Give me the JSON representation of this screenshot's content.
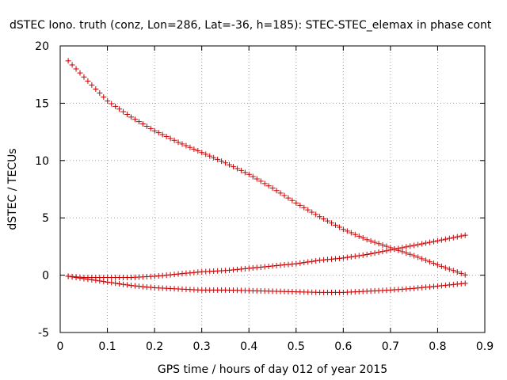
{
  "chart_data": {
    "type": "scatter",
    "title": "dSTEC Iono. truth (conz, Lon=286, Lat=-36, h=185): STEC-STEC_elemax in phase cont",
    "xlabel": "GPS time / hours of day 012 of year 2015",
    "ylabel": "dSTEC  / TECUs",
    "xlim": [
      0,
      0.9
    ],
    "ylim": [
      -5,
      20
    ],
    "x_ticks": [
      "0",
      "0.1",
      "0.2",
      "0.3",
      "0.4",
      "0.5",
      "0.6",
      "0.7",
      "0.8",
      "0.9"
    ],
    "y_ticks": [
      "-5",
      "0",
      "5",
      "10",
      "15",
      "20"
    ],
    "grid": true,
    "marker": "plus",
    "color": "#cc0000",
    "series": [
      {
        "x_start": 0.017,
        "x_end": 0.86,
        "step": 0.00833,
        "x_knots": [
          0.017,
          0.05,
          0.1,
          0.15,
          0.2,
          0.25,
          0.3,
          0.35,
          0.4,
          0.45,
          0.5,
          0.55,
          0.6,
          0.65,
          0.7,
          0.75,
          0.8,
          0.86
        ],
        "y_knots": [
          18.7,
          17.3,
          15.2,
          13.8,
          12.6,
          11.6,
          10.7,
          9.8,
          8.8,
          7.6,
          6.3,
          5.1,
          4.0,
          3.1,
          2.4,
          1.7,
          0.9,
          0.0
        ]
      },
      {
        "x_start": 0.017,
        "x_end": 0.86,
        "step": 0.00833,
        "x_knots": [
          0.017,
          0.05,
          0.1,
          0.15,
          0.2,
          0.25,
          0.3,
          0.35,
          0.4,
          0.45,
          0.5,
          0.55,
          0.6,
          0.65,
          0.7,
          0.75,
          0.8,
          0.86
        ],
        "y_knots": [
          -0.1,
          -0.2,
          -0.2,
          -0.2,
          -0.1,
          0.1,
          0.3,
          0.4,
          0.6,
          0.8,
          1.0,
          1.3,
          1.5,
          1.8,
          2.2,
          2.6,
          3.0,
          3.5
        ]
      },
      {
        "x_start": 0.017,
        "x_end": 0.86,
        "step": 0.00833,
        "x_knots": [
          0.017,
          0.05,
          0.1,
          0.15,
          0.2,
          0.25,
          0.3,
          0.35,
          0.4,
          0.45,
          0.5,
          0.55,
          0.6,
          0.65,
          0.7,
          0.75,
          0.8,
          0.86
        ],
        "y_knots": [
          -0.1,
          -0.3,
          -0.6,
          -0.9,
          -1.1,
          -1.2,
          -1.3,
          -1.3,
          -1.35,
          -1.4,
          -1.45,
          -1.5,
          -1.5,
          -1.4,
          -1.3,
          -1.15,
          -0.95,
          -0.7
        ]
      }
    ]
  }
}
